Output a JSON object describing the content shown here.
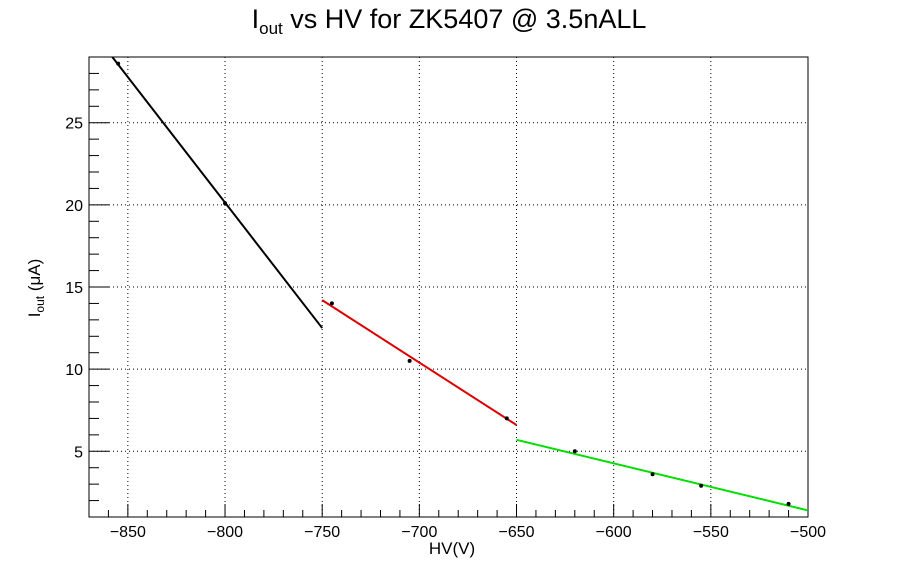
{
  "chart_data": {
    "type": "scatter",
    "title_main": "I",
    "title_sub": "out",
    "title_rest": " vs HV for ZK5407 @ 3.5nALL",
    "xlabel": "HV(V)",
    "ylabel_main": "I",
    "ylabel_sub": "out",
    "ylabel_rest": " (μA)",
    "xlim": [
      -870,
      -500
    ],
    "ylim": [
      1.0,
      29.0
    ],
    "x_ticks": [
      -850,
      -800,
      -750,
      -700,
      -650,
      -600,
      -550,
      -500
    ],
    "x_tick_labels": [
      "−850",
      "−800",
      "−750",
      "−700",
      "−650",
      "−600",
      "−550",
      "−500"
    ],
    "y_ticks": [
      5,
      10,
      15,
      20,
      25
    ],
    "y_tick_labels": [
      "5",
      "10",
      "15",
      "20",
      "25"
    ],
    "grid": true,
    "points": [
      {
        "x": -855,
        "y": 28.6
      },
      {
        "x": -800,
        "y": 20.1
      },
      {
        "x": -745,
        "y": 14.0
      },
      {
        "x": -705,
        "y": 10.5
      },
      {
        "x": -655,
        "y": 7.0
      },
      {
        "x": -620,
        "y": 5.0
      },
      {
        "x": -580,
        "y": 3.6
      },
      {
        "x": -555,
        "y": 2.9
      },
      {
        "x": -510,
        "y": 1.8
      }
    ],
    "fit_lines": [
      {
        "color": "#000000",
        "x": [
          -858,
          -750
        ],
        "y": [
          29.0,
          12.5
        ]
      },
      {
        "color": "#dd0000",
        "x": [
          -750,
          -650
        ],
        "y": [
          14.2,
          6.6
        ]
      },
      {
        "color": "#00dd00",
        "x": [
          -650,
          -500
        ],
        "y": [
          5.7,
          1.4
        ]
      }
    ]
  }
}
